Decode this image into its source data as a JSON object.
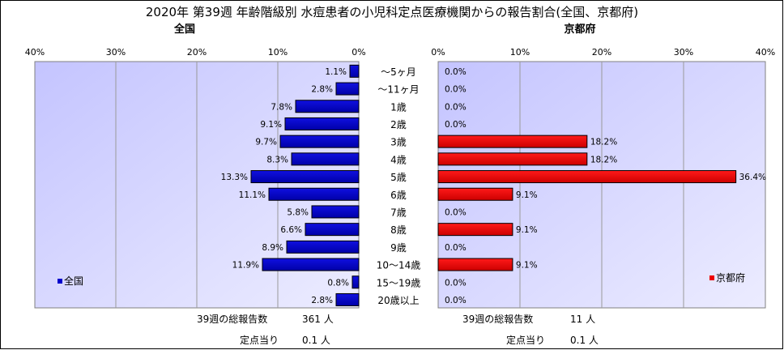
{
  "title": "2020年 第39週 年齢階級別 水痘患者の小児科定点医療機関からの報告割合(全国、京都府)",
  "chart_data": [
    {
      "type": "bar",
      "orientation": "horizontal",
      "direction": "right-to-left",
      "title": "全国",
      "categories": [
        "～5ヶ月",
        "～11ヶ月",
        "1歳",
        "2歳",
        "3歳",
        "4歳",
        "5歳",
        "6歳",
        "7歳",
        "8歳",
        "9歳",
        "10～14歳",
        "15～19歳",
        "20歳以上"
      ],
      "series": [
        {
          "name": "全国",
          "values": [
            1.1,
            2.8,
            7.8,
            9.1,
            9.7,
            8.3,
            13.3,
            11.1,
            5.8,
            6.6,
            8.9,
            11.9,
            0.8,
            2.8
          ],
          "color": "#0000cc"
        }
      ],
      "value_labels": [
        "1.1%",
        "2.8%",
        "7.8%",
        "9.1%",
        "9.7%",
        "8.3%",
        "13.3%",
        "11.1%",
        "5.8%",
        "6.6%",
        "8.9%",
        "11.9%",
        "0.8%",
        "2.8%"
      ],
      "ticks": [
        "40%",
        "30%",
        "20%",
        "10%",
        "0%"
      ],
      "xlim": [
        0,
        40
      ],
      "grid": true,
      "legend": "bottom-left"
    },
    {
      "type": "bar",
      "orientation": "horizontal",
      "direction": "left-to-right",
      "title": "京都府",
      "categories": [
        "～5ヶ月",
        "～11ヶ月",
        "1歳",
        "2歳",
        "3歳",
        "4歳",
        "5歳",
        "6歳",
        "7歳",
        "8歳",
        "9歳",
        "10～14歳",
        "15～19歳",
        "20歳以上"
      ],
      "series": [
        {
          "name": "京都府",
          "values": [
            0.0,
            0.0,
            0.0,
            0.0,
            18.2,
            18.2,
            36.4,
            9.1,
            0.0,
            9.1,
            0.0,
            9.1,
            0.0,
            0.0
          ],
          "color": "#ee0000"
        }
      ],
      "value_labels": [
        "0.0%",
        "0.0%",
        "0.0%",
        "0.0%",
        "18.2%",
        "18.2%",
        "36.4%",
        "9.1%",
        "0.0%",
        "9.1%",
        "0.0%",
        "9.1%",
        "0.0%",
        "0.0%"
      ],
      "ticks": [
        "0%",
        "10%",
        "20%",
        "30%",
        "40%"
      ],
      "xlim": [
        0,
        40
      ],
      "grid": true,
      "legend": "bottom-right"
    }
  ],
  "categories_display": [
    "～5ヶ月",
    "～11ヶ月",
    "1歳",
    "2歳",
    "3歳",
    "4歳",
    "5歳",
    "6歳",
    "7歳",
    "8歳",
    "9歳",
    "10～14歳",
    "15～19歳",
    "20歳以上"
  ],
  "notes": {
    "national": {
      "total_label": "39週の総報告数",
      "total_value": "361 人",
      "per_site_label": "定点当り",
      "per_site_value": "0.1 人"
    },
    "kyoto": {
      "total_label": "39週の総報告数",
      "total_value": "11 人",
      "per_site_label": "定点当り",
      "per_site_value": "0.1 人"
    }
  }
}
